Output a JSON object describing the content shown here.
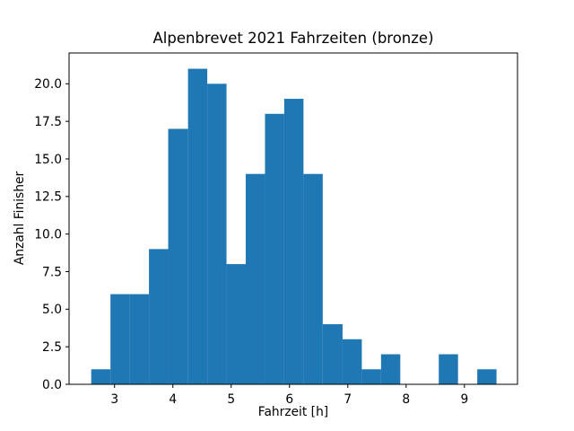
{
  "chart_data": {
    "type": "bar",
    "subtype": "histogram",
    "title": "Alpenbrevet 2021 Fahrzeiten (bronze)",
    "xlabel": "Fahrzeit [h]",
    "ylabel": "Anzahl Finisher",
    "bar_color": "#1f77b4",
    "axis_color": "#000000",
    "background_color": "#ffffff",
    "bin_edges": [
      2.6,
      2.93,
      3.26,
      3.59,
      3.92,
      4.26,
      4.59,
      4.92,
      5.25,
      5.58,
      5.91,
      6.24,
      6.57,
      6.91,
      7.24,
      7.57,
      7.9,
      8.23,
      8.56,
      8.89,
      9.22,
      9.55
    ],
    "counts": [
      1,
      6,
      6,
      9,
      17,
      21,
      20,
      8,
      14,
      18,
      19,
      14,
      4,
      3,
      1,
      2,
      0,
      0,
      2,
      0,
      1
    ],
    "xlim": [
      2.22,
      9.91
    ],
    "ylim": [
      0,
      22.05
    ],
    "xticks": [
      3,
      4,
      5,
      6,
      7,
      8,
      9
    ],
    "xtick_labels": [
      "3",
      "4",
      "5",
      "6",
      "7",
      "8",
      "9"
    ],
    "yticks": [
      0,
      2.5,
      5,
      7.5,
      10,
      12.5,
      15,
      17.5,
      20
    ],
    "ytick_labels": [
      "0.0",
      "2.5",
      "5.0",
      "7.5",
      "10.0",
      "12.5",
      "15.0",
      "17.5",
      "20.0"
    ],
    "grid": false,
    "legend": null
  }
}
